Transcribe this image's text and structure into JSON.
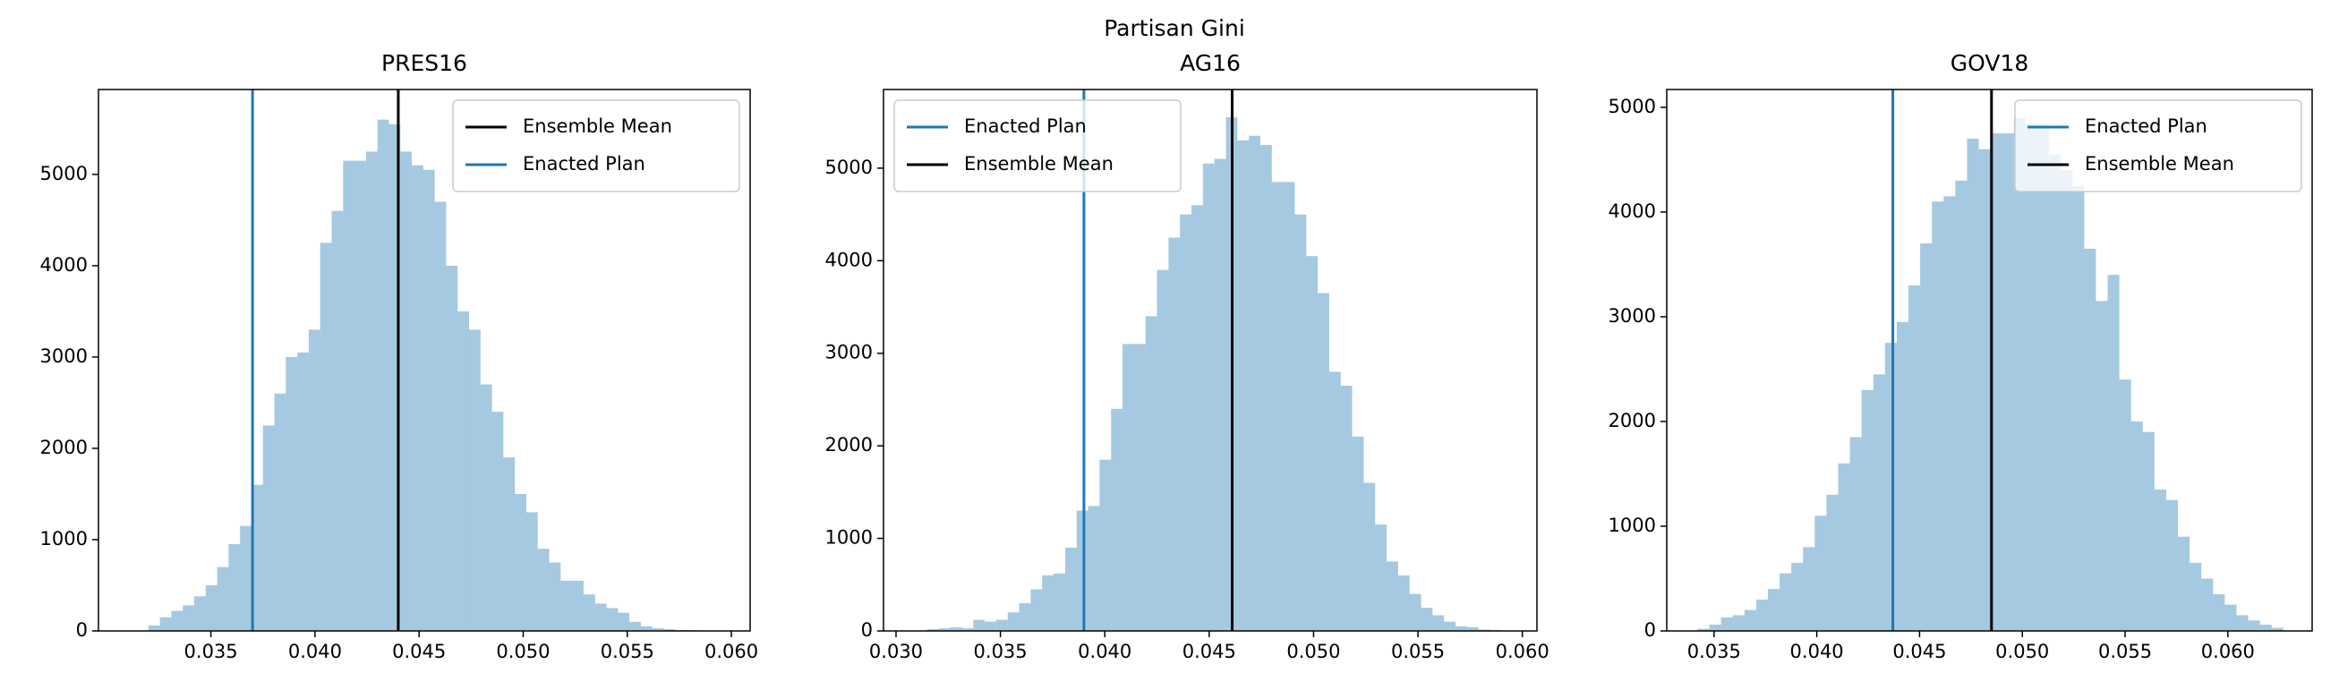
{
  "title": "Partisan Gini",
  "chart_data": [
    {
      "type": "histogram",
      "title": "PRES16",
      "color": "#1f77b4",
      "alpha": 0.4,
      "legend": "upper right",
      "bins": [
        0.032,
        0.03255,
        0.0331,
        0.03365,
        0.0342,
        0.03475,
        0.0353,
        0.03585,
        0.0364,
        0.03695,
        0.0375,
        0.03805,
        0.0386,
        0.03915,
        0.0397,
        0.04025,
        0.0408,
        0.04135,
        0.0419,
        0.04245,
        0.043,
        0.04355,
        0.0441,
        0.04465,
        0.0452,
        0.04575,
        0.0463,
        0.04685,
        0.0474,
        0.04795,
        0.0485,
        0.04905,
        0.0496,
        0.05015,
        0.0507,
        0.05125,
        0.0518,
        0.05235,
        0.0529,
        0.05345,
        0.054,
        0.05455,
        0.0551,
        0.05565,
        0.0562,
        0.05675,
        0.0573,
        0.05785,
        0.0584,
        0.05895,
        0.0595
      ],
      "counts": [
        60,
        150,
        220,
        280,
        380,
        500,
        700,
        950,
        1150,
        1600,
        2250,
        2600,
        3000,
        3050,
        3300,
        4250,
        4600,
        5150,
        5150,
        5250,
        5600,
        5550,
        5250,
        5100,
        5050,
        4700,
        4000,
        3500,
        3300,
        2700,
        2400,
        1900,
        1500,
        1300,
        900,
        750,
        550,
        550,
        400,
        300,
        250,
        200,
        100,
        50,
        30,
        20,
        10,
        8,
        5,
        3
      ],
      "lines": [
        {
          "name": "Ensemble Mean",
          "x": 0.044,
          "color": "#000000"
        },
        {
          "name": "Enacted Plan",
          "x": 0.037,
          "color": "#1f77b4"
        }
      ],
      "xlim": [
        0.0296,
        0.0609
      ],
      "xticks": [
        0.035,
        {
          "value": 0.04,
          "label": "0.040"
        },
        0.045,
        {
          "value": 0.05,
          "label": "0.050"
        },
        0.055,
        {
          "value": 0.06,
          "label": "0.060"
        }
      ],
      "ylim": [
        0,
        5930
      ],
      "yticks": [
        0,
        1000,
        2000,
        3000,
        4000,
        5000
      ]
    },
    {
      "type": "histogram",
      "title": "AG16",
      "color": "#1f77b4",
      "alpha": 0.4,
      "legend": "upper left",
      "bins": [
        0.0315,
        0.03205,
        0.0326,
        0.03315,
        0.0337,
        0.03425,
        0.0348,
        0.03535,
        0.0359,
        0.03645,
        0.037,
        0.03755,
        0.0381,
        0.03865,
        0.0392,
        0.03975,
        0.0403,
        0.04085,
        0.0414,
        0.04195,
        0.0425,
        0.04305,
        0.0436,
        0.04415,
        0.0447,
        0.04525,
        0.0458,
        0.04635,
        0.0469,
        0.04745,
        0.048,
        0.04855,
        0.0491,
        0.04965,
        0.0502,
        0.05075,
        0.0513,
        0.05185,
        0.0524,
        0.05295,
        0.0535,
        0.05405,
        0.0546,
        0.05515,
        0.0557,
        0.05625,
        0.0568,
        0.05735,
        0.0579,
        0.05845,
        0.059
      ],
      "counts": [
        20,
        30,
        40,
        30,
        120,
        100,
        120,
        200,
        300,
        450,
        600,
        620,
        900,
        1300,
        1350,
        1850,
        2400,
        3100,
        3100,
        3400,
        3900,
        4250,
        4500,
        4600,
        5050,
        5100,
        5550,
        5300,
        5350,
        5250,
        4850,
        4850,
        4500,
        4050,
        3650,
        2800,
        2650,
        2100,
        1600,
        1150,
        750,
        600,
        400,
        250,
        170,
        100,
        50,
        40,
        15,
        10
      ],
      "lines": [
        {
          "name": "Enacted Plan",
          "x": 0.039,
          "color": "#1f77b4"
        },
        {
          "name": "Ensemble Mean",
          "x": 0.0461,
          "color": "#000000"
        }
      ],
      "xlim": [
        0.0294,
        0.0607
      ],
      "xticks": [
        {
          "value": 0.03,
          "label": "0.030"
        },
        0.035,
        {
          "value": 0.04,
          "label": "0.040"
        },
        0.045,
        {
          "value": 0.05,
          "label": "0.050"
        },
        0.055,
        {
          "value": 0.06,
          "label": "0.060"
        }
      ],
      "ylim": [
        0,
        5850
      ],
      "yticks": [
        0,
        1000,
        2000,
        3000,
        4000,
        5000
      ]
    },
    {
      "type": "histogram",
      "title": "GOV18",
      "color": "#1f77b4",
      "alpha": 0.4,
      "legend": "upper right",
      "bins": [
        0.0342,
        0.03477,
        0.03534,
        0.03591,
        0.03648,
        0.03705,
        0.03762,
        0.03819,
        0.03876,
        0.03933,
        0.0399,
        0.04047,
        0.04104,
        0.04161,
        0.04218,
        0.04275,
        0.04332,
        0.04389,
        0.04446,
        0.04503,
        0.0456,
        0.04617,
        0.04674,
        0.04731,
        0.04788,
        0.04845,
        0.04902,
        0.04959,
        0.05016,
        0.05073,
        0.0513,
        0.05187,
        0.05244,
        0.05301,
        0.05358,
        0.05415,
        0.05472,
        0.05529,
        0.05586,
        0.05643,
        0.057,
        0.05757,
        0.05814,
        0.05871,
        0.05928,
        0.05985,
        0.06042,
        0.06099,
        0.06156,
        0.06213,
        0.0627
      ],
      "counts": [
        20,
        60,
        130,
        150,
        200,
        300,
        400,
        550,
        650,
        800,
        1100,
        1300,
        1600,
        1850,
        2300,
        2450,
        2750,
        2950,
        3300,
        3700,
        4100,
        4150,
        4300,
        4700,
        4600,
        4750,
        4750,
        4900,
        4850,
        4850,
        4550,
        4400,
        4250,
        3650,
        3150,
        3400,
        2400,
        2000,
        1900,
        1350,
        1250,
        900,
        650,
        500,
        350,
        250,
        150,
        100,
        60,
        30
      ],
      "lines": [
        {
          "name": "Enacted Plan",
          "x": 0.0437,
          "color": "#1f77b4"
        },
        {
          "name": "Ensemble Mean",
          "x": 0.0485,
          "color": "#000000"
        }
      ],
      "xlim": [
        0.0327,
        0.0641
      ],
      "xticks": [
        0.035,
        {
          "value": 0.04,
          "label": "0.040"
        },
        0.045,
        {
          "value": 0.05,
          "label": "0.050"
        },
        0.055,
        {
          "value": 0.06,
          "label": "0.060"
        }
      ],
      "ylim": [
        0,
        5170
      ],
      "yticks": [
        0,
        1000,
        2000,
        3000,
        4000,
        5000
      ]
    }
  ]
}
